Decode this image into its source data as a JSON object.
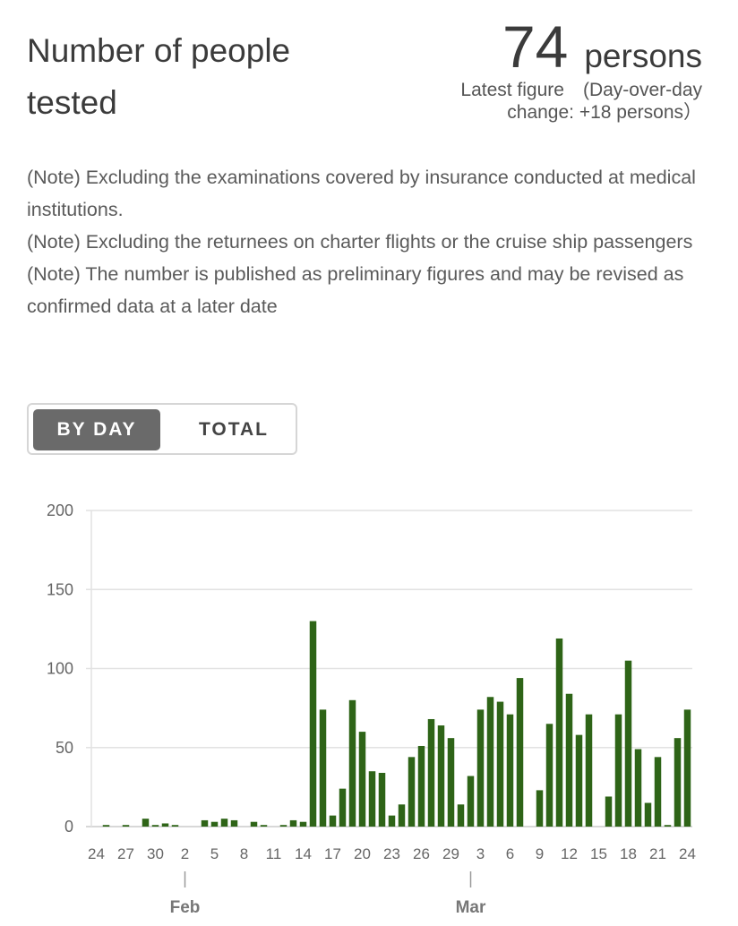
{
  "header": {
    "title": "Number of people tested",
    "latest_value": "74",
    "unit": "persons",
    "latest_label": "Latest figure　(Day-over-day change: +18 persons）"
  },
  "notes": [
    "(Note) Excluding the examinations covered by insurance conducted at medical institutions.",
    "(Note) Excluding the returnees on charter flights or the cruise ship passengers",
    "(Note) The number is published as preliminary figures and may be revised as confirmed data at a later date"
  ],
  "toggle": {
    "by_day": "BY DAY",
    "total": "TOTAL",
    "selected": "BY DAY"
  },
  "colors": {
    "bar": "#2e6417",
    "grid": "#e2e2e2",
    "axis": "#cccccc"
  },
  "chart_data": {
    "type": "bar",
    "ylim": [
      0,
      200
    ],
    "yticks": [
      0,
      50,
      100,
      150,
      200
    ],
    "x_labels": [
      "24",
      "27",
      "30",
      "2",
      "5",
      "8",
      "11",
      "14",
      "17",
      "20",
      "23",
      "26",
      "29",
      "3",
      "6",
      "9",
      "12",
      "15",
      "18",
      "21",
      "24"
    ],
    "months": [
      {
        "label": "Feb",
        "at_index": 9
      },
      {
        "label": "Mar",
        "at_index": 38
      }
    ],
    "values": [
      0,
      1,
      0,
      1,
      0,
      5,
      1,
      2,
      1,
      0,
      0,
      4,
      3,
      5,
      4,
      0,
      3,
      1,
      0,
      1,
      4,
      3,
      130,
      74,
      7,
      24,
      80,
      60,
      35,
      34,
      7,
      14,
      44,
      51,
      68,
      64,
      56,
      14,
      32,
      74,
      82,
      79,
      71,
      94,
      0,
      23,
      65,
      119,
      84,
      58,
      71,
      0,
      19,
      71,
      105,
      49,
      15,
      44,
      1,
      56,
      74
    ]
  }
}
